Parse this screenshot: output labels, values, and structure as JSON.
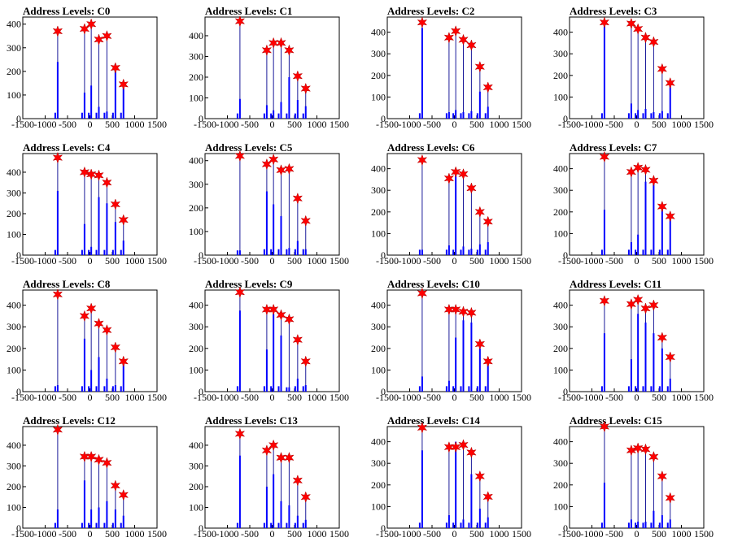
{
  "chart_data": {
    "type": "bar",
    "layout": "4x4 grid of histograms",
    "xlim": [
      -1500,
      1500
    ],
    "x_ticks": [
      -1500,
      -1000,
      -500,
      0,
      500,
      1000,
      1500
    ],
    "x_tick_labels": [
      "-1500",
      "-1000",
      "-500",
      "0",
      "500",
      "1000",
      "1500"
    ],
    "bar_color": "#0000ff",
    "marker_color": "#ff0000",
    "marker_shape": "star",
    "panels": [
      {
        "title": "Address Levels: C0",
        "ylim": [
          0,
          430
        ],
        "y_ticks": [
          0,
          100,
          200,
          300,
          400
        ],
        "markers": [
          [
            -720,
            370
          ],
          [
            -120,
            380
          ],
          [
            30,
            400
          ],
          [
            200,
            335
          ],
          [
            380,
            350
          ],
          [
            570,
            215
          ],
          [
            750,
            145
          ]
        ],
        "bars": [
          [
            -720,
            240
          ],
          [
            -120,
            110
          ],
          [
            30,
            140
          ],
          [
            200,
            50
          ],
          [
            380,
            30
          ],
          [
            570,
            230
          ],
          [
            750,
            130
          ]
        ]
      },
      {
        "title": "Address Levels: C1",
        "ylim": [
          0,
          490
        ],
        "y_ticks": [
          0,
          100,
          200,
          300,
          400
        ],
        "markers": [
          [
            -720,
            470
          ],
          [
            -120,
            330
          ],
          [
            30,
            365
          ],
          [
            200,
            365
          ],
          [
            380,
            330
          ],
          [
            570,
            205
          ],
          [
            750,
            145
          ]
        ],
        "bars": [
          [
            -720,
            95
          ],
          [
            -120,
            65
          ],
          [
            30,
            40
          ],
          [
            200,
            80
          ],
          [
            380,
            200
          ],
          [
            570,
            90
          ],
          [
            750,
            60
          ]
        ]
      },
      {
        "title": "Address Levels: C2",
        "ylim": [
          0,
          470
        ],
        "y_ticks": [
          0,
          100,
          200,
          300,
          400
        ],
        "markers": [
          [
            -720,
            445
          ],
          [
            -120,
            375
          ],
          [
            30,
            405
          ],
          [
            200,
            365
          ],
          [
            380,
            340
          ],
          [
            570,
            240
          ],
          [
            750,
            145
          ]
        ],
        "bars": [
          [
            -720,
            420
          ],
          [
            -120,
            30
          ],
          [
            30,
            40
          ],
          [
            200,
            30
          ],
          [
            380,
            35
          ],
          [
            570,
            125
          ],
          [
            750,
            55
          ]
        ]
      },
      {
        "title": "Address Levels: C3",
        "ylim": [
          0,
          470
        ],
        "y_ticks": [
          0,
          100,
          200,
          300,
          400
        ],
        "markers": [
          [
            -720,
            445
          ],
          [
            -120,
            440
          ],
          [
            30,
            415
          ],
          [
            200,
            375
          ],
          [
            380,
            355
          ],
          [
            570,
            230
          ],
          [
            750,
            165
          ]
        ],
        "bars": [
          [
            -720,
            430
          ],
          [
            -120,
            70
          ],
          [
            30,
            40
          ],
          [
            200,
            45
          ],
          [
            380,
            30
          ],
          [
            570,
            35
          ],
          [
            750,
            150
          ]
        ]
      },
      {
        "title": "Address Levels: C4",
        "ylim": [
          0,
          490
        ],
        "y_ticks": [
          0,
          100,
          200,
          300,
          400
        ],
        "markers": [
          [
            -720,
            470
          ],
          [
            -120,
            400
          ],
          [
            30,
            390
          ],
          [
            200,
            385
          ],
          [
            380,
            350
          ],
          [
            570,
            245
          ],
          [
            750,
            170
          ]
        ],
        "bars": [
          [
            -720,
            310
          ],
          [
            -120,
            150
          ],
          [
            30,
            40
          ],
          [
            200,
            280
          ],
          [
            380,
            250
          ],
          [
            570,
            160
          ],
          [
            750,
            70
          ]
        ]
      },
      {
        "title": "Address Levels: C5",
        "ylim": [
          0,
          430
        ],
        "y_ticks": [
          0,
          100,
          200,
          300,
          400
        ],
        "markers": [
          [
            -720,
            420
          ],
          [
            -120,
            385
          ],
          [
            30,
            405
          ],
          [
            200,
            360
          ],
          [
            380,
            365
          ],
          [
            570,
            240
          ],
          [
            750,
            145
          ]
        ],
        "bars": [
          [
            -720,
            20
          ],
          [
            -120,
            270
          ],
          [
            30,
            215
          ],
          [
            200,
            165
          ],
          [
            380,
            30
          ],
          [
            570,
            60
          ],
          [
            750,
            25
          ]
        ]
      },
      {
        "title": "Address Levels: C6",
        "ylim": [
          0,
          470
        ],
        "y_ticks": [
          0,
          100,
          200,
          300,
          400
        ],
        "markers": [
          [
            -720,
            440
          ],
          [
            -120,
            355
          ],
          [
            30,
            385
          ],
          [
            200,
            375
          ],
          [
            380,
            310
          ],
          [
            570,
            200
          ],
          [
            750,
            155
          ]
        ],
        "bars": [
          [
            -720,
            25
          ],
          [
            -120,
            45
          ],
          [
            30,
            395
          ],
          [
            200,
            40
          ],
          [
            380,
            30
          ],
          [
            570,
            50
          ],
          [
            750,
            60
          ]
        ]
      },
      {
        "title": "Address Levels: C7",
        "ylim": [
          0,
          470
        ],
        "y_ticks": [
          0,
          100,
          200,
          300,
          400
        ],
        "markers": [
          [
            -720,
            455
          ],
          [
            -120,
            385
          ],
          [
            30,
            405
          ],
          [
            200,
            395
          ],
          [
            380,
            345
          ],
          [
            570,
            225
          ],
          [
            750,
            180
          ]
        ],
        "bars": [
          [
            -720,
            210
          ],
          [
            -120,
            60
          ],
          [
            30,
            95
          ],
          [
            200,
            340
          ],
          [
            380,
            330
          ],
          [
            570,
            220
          ],
          [
            750,
            175
          ]
        ]
      },
      {
        "title": "Address Levels: C8",
        "ylim": [
          0,
          470
        ],
        "y_ticks": [
          0,
          100,
          200,
          300,
          400
        ],
        "markers": [
          [
            -720,
            450
          ],
          [
            -120,
            350
          ],
          [
            30,
            385
          ],
          [
            200,
            315
          ],
          [
            380,
            285
          ],
          [
            570,
            205
          ],
          [
            750,
            140
          ]
        ],
        "bars": [
          [
            -720,
            30
          ],
          [
            -120,
            245
          ],
          [
            30,
            100
          ],
          [
            200,
            160
          ],
          [
            380,
            60
          ],
          [
            570,
            30
          ],
          [
            750,
            130
          ]
        ]
      },
      {
        "title": "Address Levels: C9",
        "ylim": [
          0,
          470
        ],
        "y_ticks": [
          0,
          100,
          200,
          300,
          400
        ],
        "markers": [
          [
            -720,
            460
          ],
          [
            -120,
            380
          ],
          [
            30,
            380
          ],
          [
            200,
            355
          ],
          [
            380,
            335
          ],
          [
            570,
            240
          ],
          [
            750,
            140
          ]
        ],
        "bars": [
          [
            -720,
            375
          ],
          [
            -120,
            195
          ],
          [
            30,
            360
          ],
          [
            200,
            260
          ],
          [
            380,
            20
          ],
          [
            570,
            60
          ],
          [
            750,
            30
          ]
        ]
      },
      {
        "title": "Address Levels: C10",
        "ylim": [
          0,
          470
        ],
        "y_ticks": [
          0,
          100,
          200,
          300,
          400
        ],
        "markers": [
          [
            -720,
            455
          ],
          [
            -120,
            380
          ],
          [
            30,
            380
          ],
          [
            200,
            370
          ],
          [
            380,
            365
          ],
          [
            570,
            220
          ],
          [
            750,
            140
          ]
        ],
        "bars": [
          [
            -720,
            70
          ],
          [
            -120,
            50
          ],
          [
            30,
            250
          ],
          [
            200,
            330
          ],
          [
            380,
            320
          ],
          [
            570,
            200
          ],
          [
            750,
            125
          ]
        ]
      },
      {
        "title": "Address Levels: C11",
        "ylim": [
          0,
          470
        ],
        "y_ticks": [
          0,
          100,
          200,
          300,
          400
        ],
        "markers": [
          [
            -720,
            420
          ],
          [
            -120,
            405
          ],
          [
            30,
            425
          ],
          [
            200,
            385
          ],
          [
            380,
            400
          ],
          [
            570,
            250
          ],
          [
            750,
            160
          ]
        ],
        "bars": [
          [
            -720,
            270
          ],
          [
            -120,
            150
          ],
          [
            30,
            360
          ],
          [
            200,
            320
          ],
          [
            380,
            270
          ],
          [
            570,
            200
          ],
          [
            750,
            60
          ]
        ]
      },
      {
        "title": "Address Levels: C12",
        "ylim": [
          0,
          490
        ],
        "y_ticks": [
          0,
          100,
          200,
          300,
          400
        ],
        "markers": [
          [
            -720,
            475
          ],
          [
            -120,
            345
          ],
          [
            30,
            345
          ],
          [
            200,
            330
          ],
          [
            380,
            315
          ],
          [
            570,
            205
          ],
          [
            750,
            160
          ]
        ],
        "bars": [
          [
            -720,
            90
          ],
          [
            -120,
            230
          ],
          [
            30,
            90
          ],
          [
            200,
            100
          ],
          [
            380,
            130
          ],
          [
            570,
            90
          ],
          [
            750,
            60
          ]
        ]
      },
      {
        "title": "Address Levels: C13",
        "ylim": [
          0,
          490
        ],
        "y_ticks": [
          0,
          100,
          200,
          300,
          400
        ],
        "markers": [
          [
            -720,
            455
          ],
          [
            -120,
            375
          ],
          [
            30,
            400
          ],
          [
            200,
            340
          ],
          [
            380,
            340
          ],
          [
            570,
            230
          ],
          [
            750,
            150
          ]
        ],
        "bars": [
          [
            -720,
            350
          ],
          [
            -120,
            200
          ],
          [
            30,
            260
          ],
          [
            200,
            130
          ],
          [
            380,
            110
          ],
          [
            570,
            60
          ],
          [
            750,
            40
          ]
        ]
      },
      {
        "title": "Address Levels: C14",
        "ylim": [
          0,
          470
        ],
        "y_ticks": [
          0,
          100,
          200,
          300,
          400
        ],
        "markers": [
          [
            -720,
            465
          ],
          [
            -120,
            375
          ],
          [
            30,
            375
          ],
          [
            200,
            385
          ],
          [
            380,
            350
          ],
          [
            570,
            240
          ],
          [
            750,
            145
          ]
        ],
        "bars": [
          [
            -720,
            360
          ],
          [
            -120,
            60
          ],
          [
            30,
            400
          ],
          [
            200,
            40
          ],
          [
            380,
            250
          ],
          [
            570,
            90
          ],
          [
            750,
            50
          ]
        ]
      },
      {
        "title": "Address Levels: C15",
        "ylim": [
          0,
          470
        ],
        "y_ticks": [
          0,
          100,
          200,
          300,
          400
        ],
        "markers": [
          [
            -720,
            470
          ],
          [
            -120,
            360
          ],
          [
            30,
            370
          ],
          [
            200,
            365
          ],
          [
            380,
            330
          ],
          [
            570,
            240
          ],
          [
            750,
            140
          ]
        ],
        "bars": [
          [
            -720,
            210
          ],
          [
            -120,
            40
          ],
          [
            30,
            30
          ],
          [
            200,
            30
          ],
          [
            380,
            80
          ],
          [
            570,
            60
          ],
          [
            750,
            40
          ]
        ]
      }
    ]
  }
}
